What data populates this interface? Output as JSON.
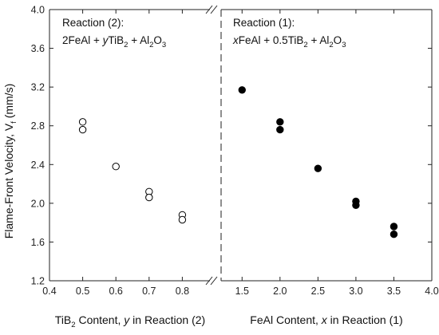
{
  "chart_data": {
    "type": "scatter",
    "y_axis": {
      "label_main": "Flame-Front Velocity, V",
      "label_sub": "f",
      "label_unit": " (mm/s)",
      "ylim": [
        1.2,
        4.0
      ],
      "ticks": [
        "1.2",
        "1.6",
        "2.0",
        "2.4",
        "2.8",
        "3.2",
        "3.6",
        "4.0"
      ]
    },
    "panels": [
      {
        "id": "left",
        "x_axis": {
          "label": {
            "p1": "TiB",
            "sub": "2",
            "p2": " Content, ",
            "var": "y",
            "p3": " in Reaction (2)"
          },
          "xlim": [
            0.4,
            0.9
          ],
          "ticks": [
            "0.4",
            "0.5",
            "0.6",
            "0.7",
            "0.8"
          ]
        },
        "annotation": {
          "title": "Reaction (2):",
          "eq": {
            "a": "2FeAl + ",
            "var": "y",
            "b": "TiB",
            "sub1": "2",
            "c": " + Al",
            "sub2": "2",
            "d": "O",
            "sub3": "3"
          }
        },
        "series": [
          {
            "marker": "open-circle",
            "points": [
              {
                "x": 0.5,
                "y": 2.84
              },
              {
                "x": 0.5,
                "y": 2.76
              },
              {
                "x": 0.6,
                "y": 2.38
              },
              {
                "x": 0.7,
                "y": 2.12
              },
              {
                "x": 0.7,
                "y": 2.06
              },
              {
                "x": 0.8,
                "y": 1.88
              },
              {
                "x": 0.8,
                "y": 1.83
              }
            ]
          }
        ]
      },
      {
        "id": "right",
        "x_axis": {
          "label": {
            "p1": "FeAl Content, ",
            "var": "x",
            "p2": " in Reaction (1)"
          },
          "xlim": [
            1.15,
            4.0
          ],
          "ticks": [
            "1.5",
            "2.0",
            "2.5",
            "3.0",
            "3.5",
            "4.0"
          ]
        },
        "annotation": {
          "title": "Reaction (1):",
          "eq": {
            "var": "x",
            "a": "FeAl + 0.5TiB",
            "sub1": "2",
            "b": " + Al",
            "sub2": "2",
            "c": "O",
            "sub3": "3"
          }
        },
        "series": [
          {
            "marker": "filled-circle",
            "points": [
              {
                "x": 1.5,
                "y": 3.17
              },
              {
                "x": 2.0,
                "y": 2.84
              },
              {
                "x": 2.0,
                "y": 2.76
              },
              {
                "x": 2.5,
                "y": 2.36
              },
              {
                "x": 3.0,
                "y": 2.02
              },
              {
                "x": 3.0,
                "y": 1.98
              },
              {
                "x": 3.5,
                "y": 1.76
              },
              {
                "x": 3.5,
                "y": 1.68
              }
            ]
          }
        ]
      }
    ]
  }
}
